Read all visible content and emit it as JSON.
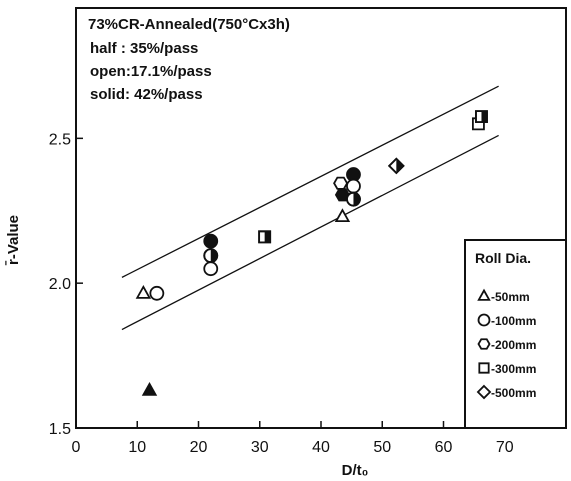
{
  "chart_data": {
    "type": "scatter",
    "annotations": {
      "title": "73%CR-Annealed(750°Cx3h)",
      "line1": "half  :  35%/pass",
      "line2": "open:17.1%/pass",
      "line3": "solid:  42%/pass"
    },
    "xlabel": "D/t₀",
    "ylabel": "r̄-Value",
    "xlim": [
      0,
      80
    ],
    "ylim": [
      1.5,
      2.95
    ],
    "x_ticks": [
      "0",
      "10",
      "20",
      "30",
      "40",
      "50",
      "60",
      "70"
    ],
    "y_ticks": [
      "1.5",
      "2.0",
      "2.5"
    ],
    "x_tick_values": [
      0,
      10,
      20,
      30,
      40,
      50,
      60,
      70
    ],
    "y_tick_values": [
      1.5,
      2.0,
      2.5
    ],
    "legend_title": "Roll Dia.",
    "legend_placement": "bottom-right",
    "legend": [
      {
        "marker": "triangle",
        "label": "-50mm"
      },
      {
        "marker": "circle",
        "label": "-100mm"
      },
      {
        "marker": "hexagon",
        "label": "-200mm"
      },
      {
        "marker": "square",
        "label": "-300mm"
      },
      {
        "marker": "diamond",
        "label": "-500mm"
      }
    ],
    "bands": [
      {
        "x": [
          7.5,
          69
        ],
        "y": [
          2.02,
          2.68
        ]
      },
      {
        "x": [
          7.5,
          69
        ],
        "y": [
          1.84,
          2.51
        ]
      }
    ],
    "points": [
      {
        "marker": "triangle",
        "fill": "open",
        "x": 11,
        "y": 1.965
      },
      {
        "marker": "circle",
        "fill": "open",
        "x": 13.2,
        "y": 1.965
      },
      {
        "marker": "triangle",
        "fill": "solid",
        "x": 12,
        "y": 1.63
      },
      {
        "marker": "circle",
        "fill": "solid",
        "x": 22,
        "y": 2.145
      },
      {
        "marker": "circle",
        "fill": "half",
        "x": 22,
        "y": 2.095
      },
      {
        "marker": "circle",
        "fill": "open",
        "x": 22,
        "y": 2.05
      },
      {
        "marker": "square",
        "fill": "half",
        "x": 30.8,
        "y": 2.16
      },
      {
        "marker": "triangle",
        "fill": "open",
        "x": 43.5,
        "y": 2.23
      },
      {
        "marker": "hexagon",
        "fill": "open",
        "x": 43.2,
        "y": 2.345
      },
      {
        "marker": "hexagon",
        "fill": "solid",
        "x": 43.5,
        "y": 2.305
      },
      {
        "marker": "circle",
        "fill": "solid",
        "x": 45.3,
        "y": 2.375
      },
      {
        "marker": "circle",
        "fill": "open",
        "x": 45.3,
        "y": 2.335
      },
      {
        "marker": "circle",
        "fill": "half",
        "x": 45.3,
        "y": 2.29
      },
      {
        "marker": "diamond",
        "fill": "half",
        "x": 52.3,
        "y": 2.405
      },
      {
        "marker": "square",
        "fill": "open",
        "x": 65.7,
        "y": 2.55
      },
      {
        "marker": "square",
        "fill": "half",
        "x": 66.2,
        "y": 2.575
      }
    ]
  }
}
